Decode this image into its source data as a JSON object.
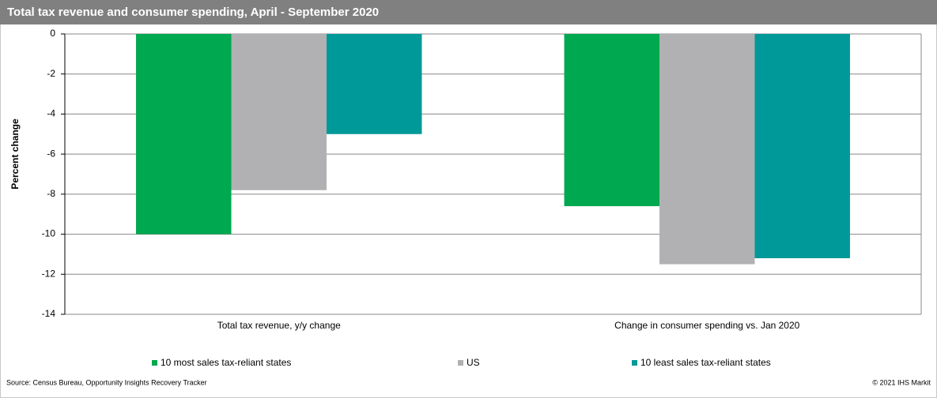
{
  "chart_data": {
    "type": "bar",
    "title": "Total tax revenue and consumer spending, April - September 2020",
    "y_label": "Percent change",
    "categories": [
      "Total tax revenue, y/y change",
      "Change in consumer spending vs. Jan 2020"
    ],
    "series": [
      {
        "name": "10 most sales tax-reliant states",
        "color": "#00a84f",
        "values": [
          -10,
          -8.6
        ]
      },
      {
        "name": "US",
        "color": "#b1b1b4",
        "values": [
          -7.8,
          -11.5
        ]
      },
      {
        "name": "10 least sales tax-reliant states",
        "color": "#009999",
        "values": [
          -5,
          -11.2
        ]
      }
    ],
    "ylim": [
      -14,
      0
    ],
    "yticks": [
      -14,
      -12,
      -10,
      -8,
      -6,
      -4,
      -2,
      0
    ],
    "grid": true,
    "legend": "bottom",
    "source": "Source: Census Bureau, Opportunity Insights Recovery Tracker",
    "copyright": "© 2021 IHS Markit"
  }
}
